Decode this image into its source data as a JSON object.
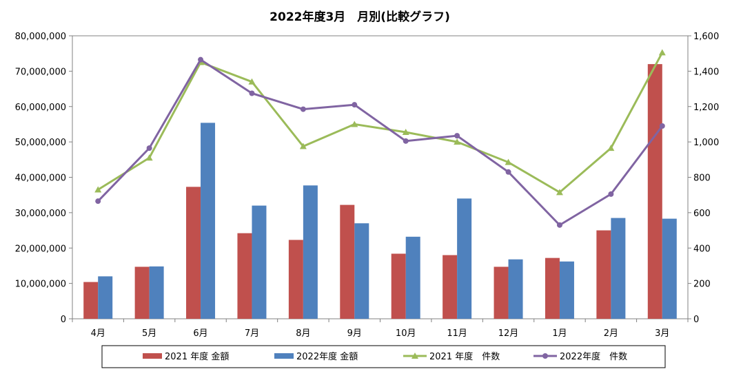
{
  "chart_data": {
    "type": "bar",
    "title": "2022年度3月　月別(比較グラフ)",
    "categories": [
      "4月",
      "5月",
      "6月",
      "7月",
      "8月",
      "9月",
      "10月",
      "11月",
      "12月",
      "1月",
      "2月",
      "3月"
    ],
    "y_left": {
      "ylim": [
        0,
        80000000
      ],
      "tick_labels": [
        "0",
        "10,000,000",
        "20,000,000",
        "30,000,000",
        "40,000,000",
        "50,000,000",
        "60,000,000",
        "70,000,000",
        "80,000,000"
      ]
    },
    "y_right": {
      "ylim": [
        0,
        1600
      ],
      "tick_labels": [
        "0",
        "200",
        "400",
        "600",
        "800",
        "1,000",
        "1,200",
        "1,400",
        "1,600"
      ]
    },
    "grid": false,
    "legend_position": "bottom",
    "series": [
      {
        "name": "2021 年度 金額",
        "kind": "bar",
        "axis": "left",
        "color": "#C0504D",
        "values": [
          10400000,
          14700000,
          37300000,
          24200000,
          22300000,
          32200000,
          18400000,
          18000000,
          14700000,
          17200000,
          25000000,
          72000000
        ]
      },
      {
        "name": "2022年度 金額",
        "kind": "bar",
        "axis": "left",
        "color": "#4F81BD",
        "values": [
          12000000,
          14800000,
          55400000,
          32000000,
          37700000,
          27000000,
          23200000,
          34000000,
          16800000,
          16200000,
          28500000,
          28300000
        ]
      },
      {
        "name": "2021 年度　件数",
        "kind": "line",
        "axis": "right",
        "color": "#9BBB59",
        "marker": "triangle",
        "values": [
          730,
          910,
          1450,
          1340,
          975,
          1100,
          1055,
          1000,
          885,
          715,
          965,
          1505
        ]
      },
      {
        "name": "2022年度　件数",
        "kind": "line",
        "axis": "right",
        "color": "#8064A2",
        "marker": "circle",
        "values": [
          665,
          965,
          1465,
          1275,
          1185,
          1210,
          1005,
          1035,
          830,
          530,
          705,
          1090
        ]
      }
    ]
  }
}
